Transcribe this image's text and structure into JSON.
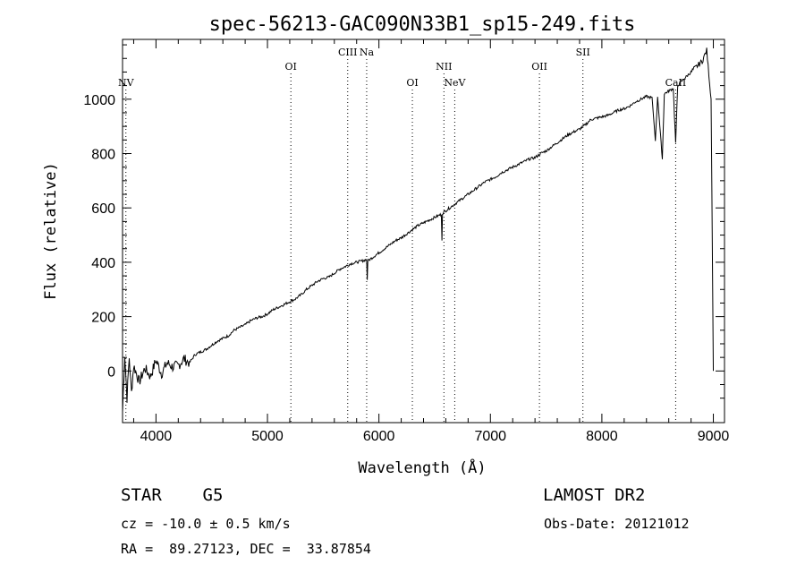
{
  "chart_data": {
    "type": "line",
    "title": "spec-56213-GAC090N33B1_sp15-249.fits",
    "xlabel": "Wavelength (Å)",
    "ylabel": "Flux (relative)",
    "xlim": [
      3700,
      9100
    ],
    "ylim": [
      -190,
      1220
    ],
    "xticks": [
      4000,
      5000,
      6000,
      7000,
      8000,
      9000
    ],
    "yticks": [
      0,
      200,
      400,
      600,
      800,
      1000
    ],
    "grid": false,
    "line_color": "#000000",
    "series": [
      {
        "x": [
          3700,
          3720,
          3740,
          3760,
          3780,
          3800,
          3850,
          3900,
          3950,
          4000,
          4050,
          4100,
          4150,
          4200,
          4250,
          4300,
          4350,
          4400,
          4450,
          4500,
          4550,
          4600,
          4650,
          4700,
          4750,
          4800,
          4850,
          4900,
          4950,
          5000,
          5050,
          5100,
          5150,
          5200,
          5250,
          5300,
          5350,
          5400,
          5450,
          5500,
          5550,
          5600,
          5650,
          5700,
          5750,
          5800,
          5850,
          5890,
          5895,
          5900,
          5950,
          6000,
          6050,
          6100,
          6150,
          6200,
          6250,
          6300,
          6350,
          6400,
          6450,
          6500,
          6550,
          6560,
          6565,
          6570,
          6600,
          6650,
          6700,
          6750,
          6800,
          6850,
          6900,
          6950,
          7000,
          7050,
          7100,
          7150,
          7200,
          7250,
          7300,
          7350,
          7400,
          7450,
          7500,
          7550,
          7600,
          7650,
          7700,
          7750,
          7800,
          7850,
          7900,
          7950,
          8000,
          8050,
          8100,
          8150,
          8200,
          8250,
          8300,
          8350,
          8400,
          8450,
          8480,
          8500,
          8520,
          8542,
          8560,
          8600,
          8640,
          8662,
          8680,
          8700,
          8750,
          8800,
          8850,
          8900,
          8920,
          8940,
          8960,
          8980,
          9000
        ],
        "y": [
          -150,
          60,
          -100,
          50,
          -80,
          20,
          -40,
          10,
          -20,
          40,
          -10,
          30,
          15,
          20,
          45,
          30,
          60,
          70,
          80,
          95,
          110,
          120,
          130,
          150,
          160,
          170,
          185,
          195,
          200,
          210,
          225,
          235,
          245,
          255,
          265,
          280,
          300,
          315,
          330,
          340,
          345,
          360,
          375,
          385,
          395,
          400,
          405,
          410,
          335,
          405,
          420,
          435,
          450,
          465,
          480,
          490,
          505,
          520,
          535,
          545,
          555,
          565,
          575,
          575,
          480,
          580,
          590,
          605,
          620,
          635,
          650,
          665,
          680,
          695,
          705,
          715,
          730,
          740,
          750,
          760,
          770,
          780,
          785,
          800,
          810,
          825,
          840,
          855,
          870,
          880,
          890,
          905,
          925,
          930,
          935,
          940,
          950,
          960,
          965,
          975,
          990,
          1000,
          1010,
          1005,
          850,
          1010,
          900,
          780,
          1020,
          1030,
          1040,
          840,
          1050,
          1060,
          1080,
          1100,
          1120,
          1140,
          1160,
          1180,
          1090,
          1000,
          0
        ]
      }
    ],
    "line_markers": [
      {
        "label": "NV",
        "x": 3730,
        "row": "low"
      },
      {
        "label": "OI",
        "x": 5210,
        "row": "mid"
      },
      {
        "label": "CIII",
        "x": 5720,
        "row": "top"
      },
      {
        "label": "Na",
        "x": 5890,
        "row": "top"
      },
      {
        "label": "OI",
        "x": 6300,
        "row": "low"
      },
      {
        "label": "NII",
        "x": 6583,
        "row": "mid"
      },
      {
        "label": "NeV",
        "x": 6680,
        "row": "low"
      },
      {
        "label": "OII",
        "x": 7440,
        "row": "mid"
      },
      {
        "label": "SII",
        "x": 7830,
        "row": "top"
      },
      {
        "label": "CaII",
        "x": 8662,
        "row": "low"
      }
    ]
  },
  "info": {
    "object": "STAR    G5",
    "survey": "LAMOST DR2",
    "cz": "cz = -10.0 ± 0.5 km/s",
    "obs_date": "Obs-Date: 20121012",
    "coords": "RA =  89.27123, DEC =  33.87854"
  }
}
